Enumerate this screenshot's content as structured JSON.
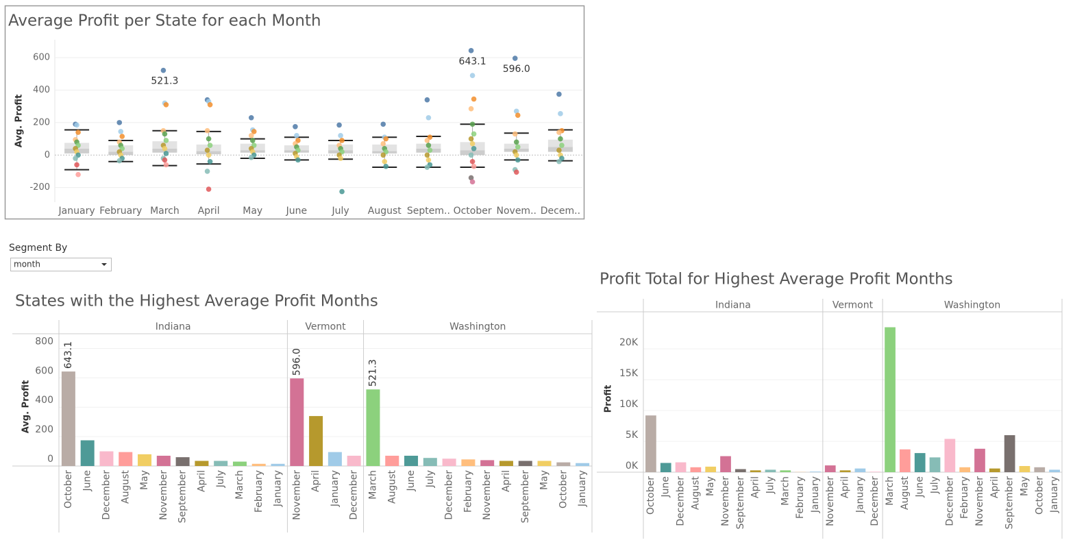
{
  "filter": {
    "label": "Segment By",
    "value": "month"
  },
  "month_colors": {
    "January": "#a0cbe8",
    "February": "#ffbe7d",
    "March": "#8cd17d",
    "April": "#b6992d",
    "May": "#f1ce63",
    "June": "#4e9a97",
    "July": "#86bcb6",
    "August": "#ff9d9a",
    "September": "#79706e",
    "October": "#b9aca6",
    "November": "#d37295",
    "December": "#f9b9cb"
  },
  "chart_data": [
    {
      "type": "box",
      "title": "Average Profit per State for each Month",
      "y_label": "Avg. Profit",
      "categories": [
        "January",
        "February",
        "March",
        "April",
        "May",
        "June",
        "July",
        "August",
        "Septem..",
        "October",
        "Novem..",
        "Decem.."
      ],
      "ylim": [
        -290,
        710
      ],
      "yticks": [
        -200,
        0,
        200,
        400,
        600
      ],
      "grid": true,
      "palette": [
        "#4e79a7",
        "#a0cbe8",
        "#f28e2b",
        "#ffbe7d",
        "#59a14f",
        "#8cd17d",
        "#b6992d",
        "#f1ce63",
        "#499894",
        "#86bcb6",
        "#e15759",
        "#ff9d9a",
        "#79706e",
        "#d37295",
        "#fabfd2",
        "#b07aa1"
      ],
      "points": [
        [
          190,
          185,
          140,
          95,
          80,
          60,
          40,
          20,
          0,
          -20,
          -60,
          -120
        ],
        [
          200,
          145,
          115,
          80,
          60,
          40,
          20,
          0,
          -20,
          -35
        ],
        [
          521.3,
          320,
          310,
          150,
          130,
          90,
          60,
          40,
          10,
          -20,
          -30,
          -60
        ],
        [
          340,
          330,
          310,
          150,
          100,
          60,
          30,
          0,
          -40,
          -100,
          -210
        ],
        [
          230,
          155,
          145,
          120,
          90,
          60,
          40,
          20,
          0,
          -15
        ],
        [
          175,
          120,
          90,
          70,
          50,
          30,
          10,
          -10,
          -30
        ],
        [
          185,
          120,
          90,
          60,
          40,
          20,
          0,
          -20,
          -225
        ],
        [
          190,
          110,
          100,
          70,
          40,
          20,
          0,
          -40,
          -70
        ],
        [
          340,
          230,
          110,
          90,
          60,
          30,
          0,
          -30,
          -60,
          -75
        ],
        [
          643.1,
          490,
          345,
          285,
          190,
          130,
          100,
          70,
          40,
          0,
          -40,
          -70,
          -140,
          -165
        ],
        [
          596,
          270,
          245,
          130,
          80,
          50,
          20,
          0,
          -30,
          -90,
          -105
        ],
        [
          375,
          255,
          150,
          140,
          100,
          60,
          30,
          0,
          -20,
          -40
        ]
      ],
      "boxes": [
        {
          "low": -90,
          "q1": 10,
          "median": 40,
          "q3": 75,
          "high": 155
        },
        {
          "low": -40,
          "q1": 0,
          "median": 20,
          "q3": 60,
          "high": 90
        },
        {
          "low": -65,
          "q1": 15,
          "median": 40,
          "q3": 85,
          "high": 150
        },
        {
          "low": -55,
          "q1": 5,
          "median": 25,
          "q3": 65,
          "high": 145
        },
        {
          "low": -20,
          "q1": 15,
          "median": 30,
          "q3": 70,
          "high": 100
        },
        {
          "low": -30,
          "q1": 15,
          "median": 30,
          "q3": 60,
          "high": 110
        },
        {
          "low": -25,
          "q1": 10,
          "median": 30,
          "q3": 65,
          "high": 90
        },
        {
          "low": -75,
          "q1": 10,
          "median": 25,
          "q3": 65,
          "high": 110
        },
        {
          "low": -75,
          "q1": 15,
          "median": 40,
          "q3": 70,
          "high": 115
        },
        {
          "low": -75,
          "q1": 0,
          "median": 30,
          "q3": 80,
          "high": 190
        },
        {
          "low": -30,
          "q1": 20,
          "median": 40,
          "q3": 70,
          "high": 135
        },
        {
          "low": -35,
          "q1": 20,
          "median": 50,
          "q3": 95,
          "high": 155
        }
      ],
      "annotations": [
        {
          "x": "March",
          "value": 521.3,
          "label": "521.3"
        },
        {
          "x": "October",
          "value": 643.1,
          "label": "643.1"
        },
        {
          "x": "Novem..",
          "value": 596,
          "label": "596.0"
        }
      ]
    },
    {
      "type": "facet-bar",
      "title": "States with the Highest Average Profit Months",
      "y_label": "Avg. Profit",
      "ylim": [
        0,
        900
      ],
      "yticks": [
        0,
        200,
        400,
        600,
        800
      ],
      "panels": [
        {
          "name": "Indiana",
          "categories": [
            "October",
            "June",
            "December",
            "August",
            "May",
            "November",
            "September",
            "April",
            "July",
            "March",
            "February",
            "January"
          ],
          "values": [
            643.1,
            175,
            100,
            95,
            80,
            70,
            60,
            35,
            35,
            30,
            15,
            15
          ],
          "value_labels": [
            "643.1",
            null,
            null,
            null,
            null,
            null,
            null,
            null,
            null,
            null,
            null,
            null
          ]
        },
        {
          "name": "Vermont",
          "categories": [
            "November",
            "April",
            "January",
            "December"
          ],
          "values": [
            596,
            340,
            95,
            70
          ],
          "value_labels": [
            "596.0",
            null,
            null,
            null
          ]
        },
        {
          "name": "Washington",
          "categories": [
            "March",
            "August",
            "June",
            "July",
            "December",
            "February",
            "November",
            "April",
            "September",
            "May",
            "October",
            "January"
          ],
          "values": [
            521.3,
            70,
            70,
            55,
            50,
            45,
            40,
            35,
            35,
            35,
            25,
            20
          ],
          "value_labels": [
            "521.3",
            null,
            null,
            null,
            null,
            null,
            null,
            null,
            null,
            null,
            null,
            null
          ]
        }
      ]
    },
    {
      "type": "facet-bar",
      "title": "Profit Total for Highest Average Profit Months",
      "y_label": "Profit",
      "ylim": [
        0,
        26000
      ],
      "yticks": [
        {
          "value": 0,
          "label": "0K"
        },
        {
          "value": 5000,
          "label": "5K"
        },
        {
          "value": 10000,
          "label": "10K"
        },
        {
          "value": 15000,
          "label": "15K"
        },
        {
          "value": 20000,
          "label": "20K"
        }
      ],
      "panels": [
        {
          "name": "Indiana",
          "categories": [
            "October",
            "June",
            "December",
            "August",
            "May",
            "November",
            "September",
            "April",
            "July",
            "March",
            "February",
            "January"
          ],
          "values": [
            9200,
            1500,
            1600,
            800,
            900,
            2600,
            500,
            300,
            400,
            300,
            30,
            100
          ]
        },
        {
          "name": "Vermont",
          "categories": [
            "November",
            "April",
            "January",
            "December"
          ],
          "values": [
            1100,
            300,
            600,
            80
          ]
        },
        {
          "name": "Washington",
          "categories": [
            "March",
            "August",
            "June",
            "July",
            "December",
            "February",
            "November",
            "April",
            "September",
            "May",
            "October",
            "January"
          ],
          "values": [
            23500,
            3700,
            3100,
            2400,
            5400,
            800,
            3800,
            600,
            6000,
            1000,
            800,
            400
          ]
        }
      ]
    }
  ]
}
